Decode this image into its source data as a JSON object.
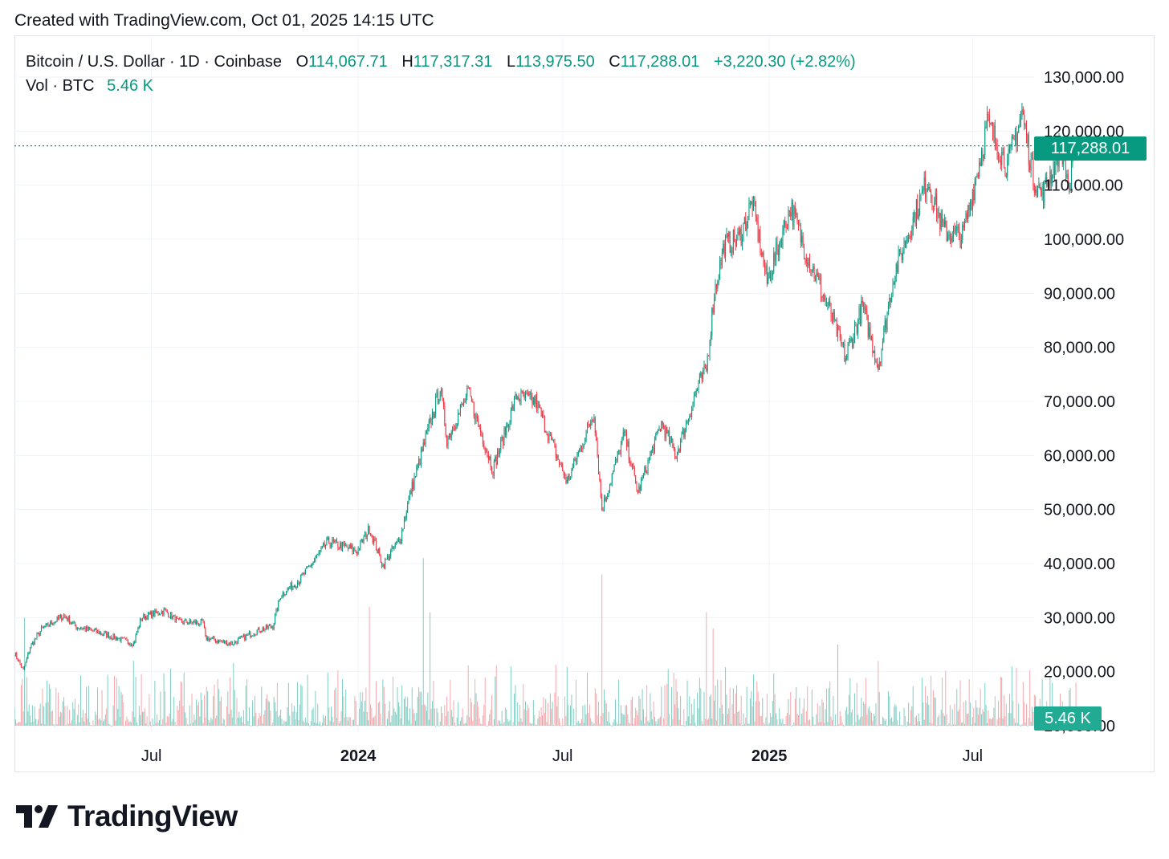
{
  "caption": "Created with TradingView.com, Oct 01, 2025 14:15 UTC",
  "legend": {
    "symbol": "Bitcoin / U.S. Dollar · 1D · Coinbase",
    "open_key": "O",
    "open": "114,067.71",
    "high_key": "H",
    "high": "117,317.31",
    "low_key": "L",
    "low": "113,975.50",
    "close_key": "C",
    "close": "117,288.01",
    "change": "+3,220.30 (+2.82%)",
    "vol_label": "Vol · BTC",
    "vol_value": "5.46 K"
  },
  "last_price_tag": "117,288.01",
  "last_volume_tag": "5.46 K",
  "footer": {
    "brand": "TradingView",
    "logo_icon": "tradingview-logo-icon"
  },
  "colors": {
    "up": "#089981",
    "down": "#f23645",
    "grid": "#f0f3fa",
    "volume_up": "#7fcfc3",
    "volume_down": "#f7a9ae"
  },
  "chart_data": {
    "type": "candlestick",
    "title": "",
    "ylim": [
      10000,
      130000
    ],
    "y_ticks": [
      "130,000.00",
      "120,000.00",
      "110,000.00",
      "100,000.00",
      "90,000.00",
      "80,000.00",
      "70,000.00",
      "60,000.00",
      "50,000.00",
      "40,000.00",
      "30,000.00",
      "20,000.00",
      "10,000.00"
    ],
    "x_ticks": [
      {
        "label": "Jul",
        "bold": false,
        "date": "2023-07-01"
      },
      {
        "label": "2024",
        "bold": true,
        "date": "2024-01-01"
      },
      {
        "label": "Jul",
        "bold": false,
        "date": "2024-07-01"
      },
      {
        "label": "2025",
        "bold": true,
        "date": "2025-01-01"
      },
      {
        "label": "Jul",
        "bold": false,
        "date": "2025-07-01"
      }
    ],
    "x_range": [
      "2023-03-01",
      "2025-12-10"
    ],
    "last_date": "2025-10-01",
    "last_close": 117288.01,
    "price_path": [
      [
        "2023-03-01",
        23500
      ],
      [
        "2023-03-09",
        20200
      ],
      [
        "2023-03-15",
        24500
      ],
      [
        "2023-03-25",
        27800
      ],
      [
        "2023-04-14",
        30400
      ],
      [
        "2023-04-25",
        28300
      ],
      [
        "2023-05-10",
        27600
      ],
      [
        "2023-06-15",
        25200
      ],
      [
        "2023-06-22",
        30000
      ],
      [
        "2023-07-13",
        31300
      ],
      [
        "2023-07-25",
        29200
      ],
      [
        "2023-08-16",
        29000
      ],
      [
        "2023-08-18",
        26200
      ],
      [
        "2023-09-11",
        25200
      ],
      [
        "2023-10-01",
        27400
      ],
      [
        "2023-10-17",
        28500
      ],
      [
        "2023-10-24",
        34200
      ],
      [
        "2023-11-10",
        37000
      ],
      [
        "2023-12-05",
        44000
      ],
      [
        "2023-12-31",
        42300
      ],
      [
        "2024-01-11",
        46500
      ],
      [
        "2024-01-23",
        39600
      ],
      [
        "2024-02-08",
        45000
      ],
      [
        "2024-02-15",
        52000
      ],
      [
        "2024-02-28",
        61500
      ],
      [
        "2024-03-14",
        72500
      ],
      [
        "2024-03-20",
        63000
      ],
      [
        "2024-04-08",
        71500
      ],
      [
        "2024-04-30",
        57500
      ],
      [
        "2024-05-21",
        71000
      ],
      [
        "2024-06-07",
        70000
      ],
      [
        "2024-07-05",
        55000
      ],
      [
        "2024-07-29",
        68000
      ],
      [
        "2024-08-05",
        50000
      ],
      [
        "2024-08-25",
        64000
      ],
      [
        "2024-09-06",
        53000
      ],
      [
        "2024-09-27",
        66000
      ],
      [
        "2024-10-10",
        60000
      ],
      [
        "2024-10-29",
        72500
      ],
      [
        "2024-11-06",
        76000
      ],
      [
        "2024-11-13",
        90000
      ],
      [
        "2024-11-22",
        99000
      ],
      [
        "2024-12-05",
        100000
      ],
      [
        "2024-12-17",
        107000
      ],
      [
        "2024-12-30",
        92000
      ],
      [
        "2025-01-20",
        106000
      ],
      [
        "2025-02-02",
        98000
      ],
      [
        "2025-02-25",
        86000
      ],
      [
        "2025-03-10",
        78000
      ],
      [
        "2025-03-25",
        87500
      ],
      [
        "2025-04-08",
        76500
      ],
      [
        "2025-04-22",
        93500
      ],
      [
        "2025-05-08",
        103000
      ],
      [
        "2025-05-22",
        111000
      ],
      [
        "2025-06-05",
        101500
      ],
      [
        "2025-06-22",
        100500
      ],
      [
        "2025-07-10",
        117000
      ],
      [
        "2025-07-14",
        121500
      ],
      [
        "2025-08-01",
        113500
      ],
      [
        "2025-08-14",
        123500
      ],
      [
        "2025-08-24",
        111500
      ],
      [
        "2025-09-01",
        108000
      ],
      [
        "2025-09-18",
        117500
      ],
      [
        "2025-09-25",
        109000
      ],
      [
        "2025-10-01",
        117288.01
      ]
    ],
    "volume_spikes": [
      [
        "2023-03-10",
        30000
      ],
      [
        "2023-06-15",
        22000
      ],
      [
        "2024-01-11",
        32000
      ],
      [
        "2024-02-28",
        41000
      ],
      [
        "2024-03-05",
        31000
      ],
      [
        "2024-08-05",
        38000
      ],
      [
        "2024-11-06",
        31000
      ],
      [
        "2024-11-12",
        28000
      ],
      [
        "2025-03-03",
        25000
      ],
      [
        "2025-04-08",
        22000
      ],
      [
        "2025-08-05",
        21000
      ]
    ],
    "volume_baseline_max": 20000
  }
}
